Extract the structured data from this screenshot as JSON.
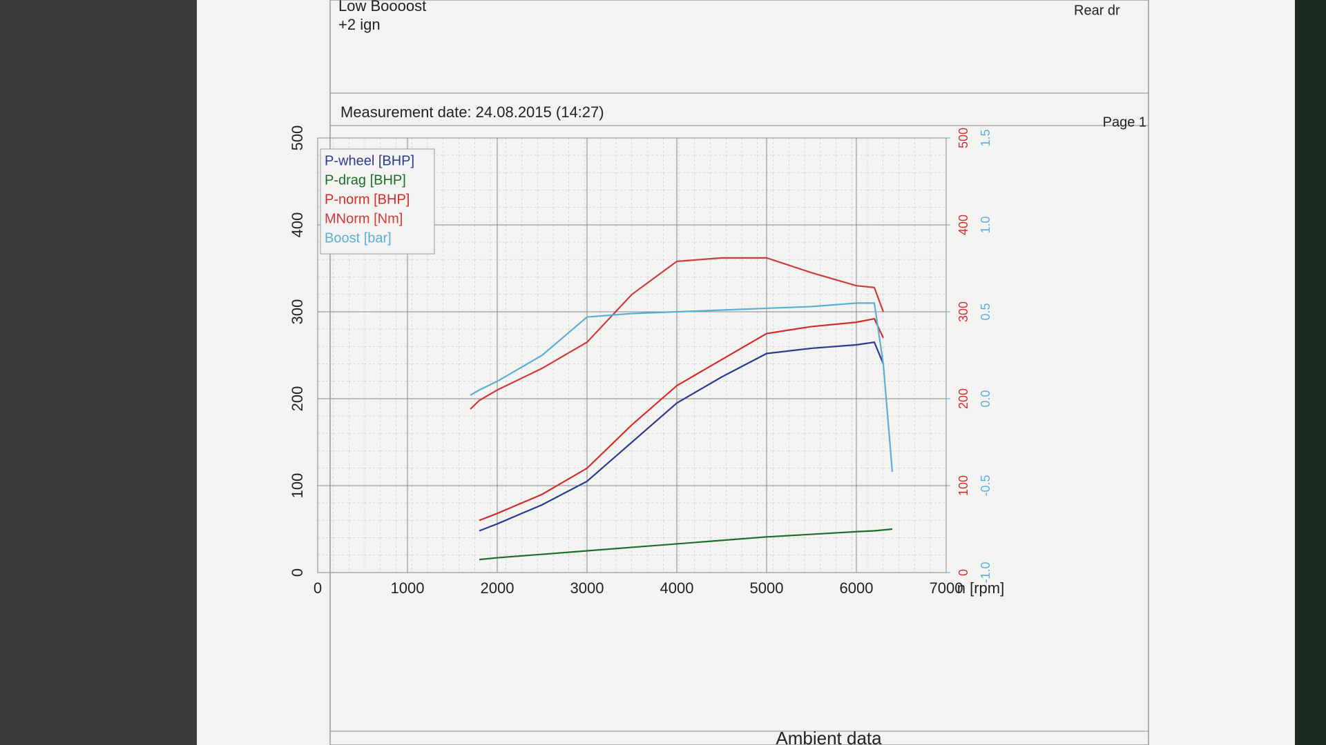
{
  "header": {
    "lines": [
      "Low Boooost",
      "+2 ign"
    ],
    "corner": "Rear dr"
  },
  "measurement": "Measurement date: 24.08.2015 (14:27)",
  "page": "Page 1",
  "footer": "Ambient data",
  "chart_data": {
    "type": "line",
    "xlabel": "n [rpm]",
    "x": [
      1700,
      1800,
      2000,
      2500,
      3000,
      3500,
      4000,
      4500,
      5000,
      5500,
      6000,
      6200,
      6300,
      6400
    ],
    "xlim": [
      0,
      7000
    ],
    "xticks": [
      0,
      1000,
      2000,
      3000,
      4000,
      5000,
      6000,
      7000
    ],
    "ylim": [
      0,
      500
    ],
    "yticks": [
      0,
      100,
      200,
      300,
      400,
      500
    ],
    "y2lim": [
      0,
      500
    ],
    "y2ticks": [
      0,
      100,
      200,
      300,
      400,
      500
    ],
    "y3lim": [
      -1.0,
      1.5
    ],
    "y3ticks": [
      {
        "value": -1.0,
        "label": "-1.0"
      },
      -0.5,
      {
        "value": 0,
        "label": "0.0"
      },
      0.5,
      {
        "value": 1.0,
        "label": "1.0"
      },
      1.5
    ],
    "y2color": "#d03030",
    "y3color": "#5aaed6",
    "grid": true,
    "legend": "upper left",
    "series": [
      {
        "name": "P-wheel [BHP]",
        "color": "#2b3a8f",
        "values": [
          null,
          48,
          56,
          78,
          105,
          150,
          195,
          225,
          252,
          258,
          262,
          265,
          240,
          null
        ]
      },
      {
        "name": "P-drag [BHP]",
        "color": "#1e6b2e",
        "values": [
          null,
          15,
          17,
          21,
          25,
          29,
          33,
          37,
          41,
          44,
          47,
          48,
          49,
          50
        ]
      },
      {
        "name": "P-norm [BHP]",
        "color": "#d42a2a",
        "values": [
          null,
          60,
          68,
          90,
          120,
          170,
          215,
          245,
          275,
          283,
          288,
          292,
          270,
          null
        ]
      },
      {
        "name": "MNorm [Nm]",
        "color": "#cc3a3a",
        "axis": "y2",
        "values": [
          188,
          198,
          210,
          235,
          265,
          320,
          358,
          362,
          362,
          345,
          330,
          328,
          300,
          null
        ]
      },
      {
        "name": "Boost [bar]",
        "color": "#5aaed6",
        "axis": "y3",
        "values": [
          0.02,
          0.05,
          0.1,
          0.25,
          0.47,
          0.49,
          0.5,
          0.51,
          0.52,
          0.53,
          0.55,
          0.55,
          0.2,
          -0.42
        ]
      }
    ]
  }
}
